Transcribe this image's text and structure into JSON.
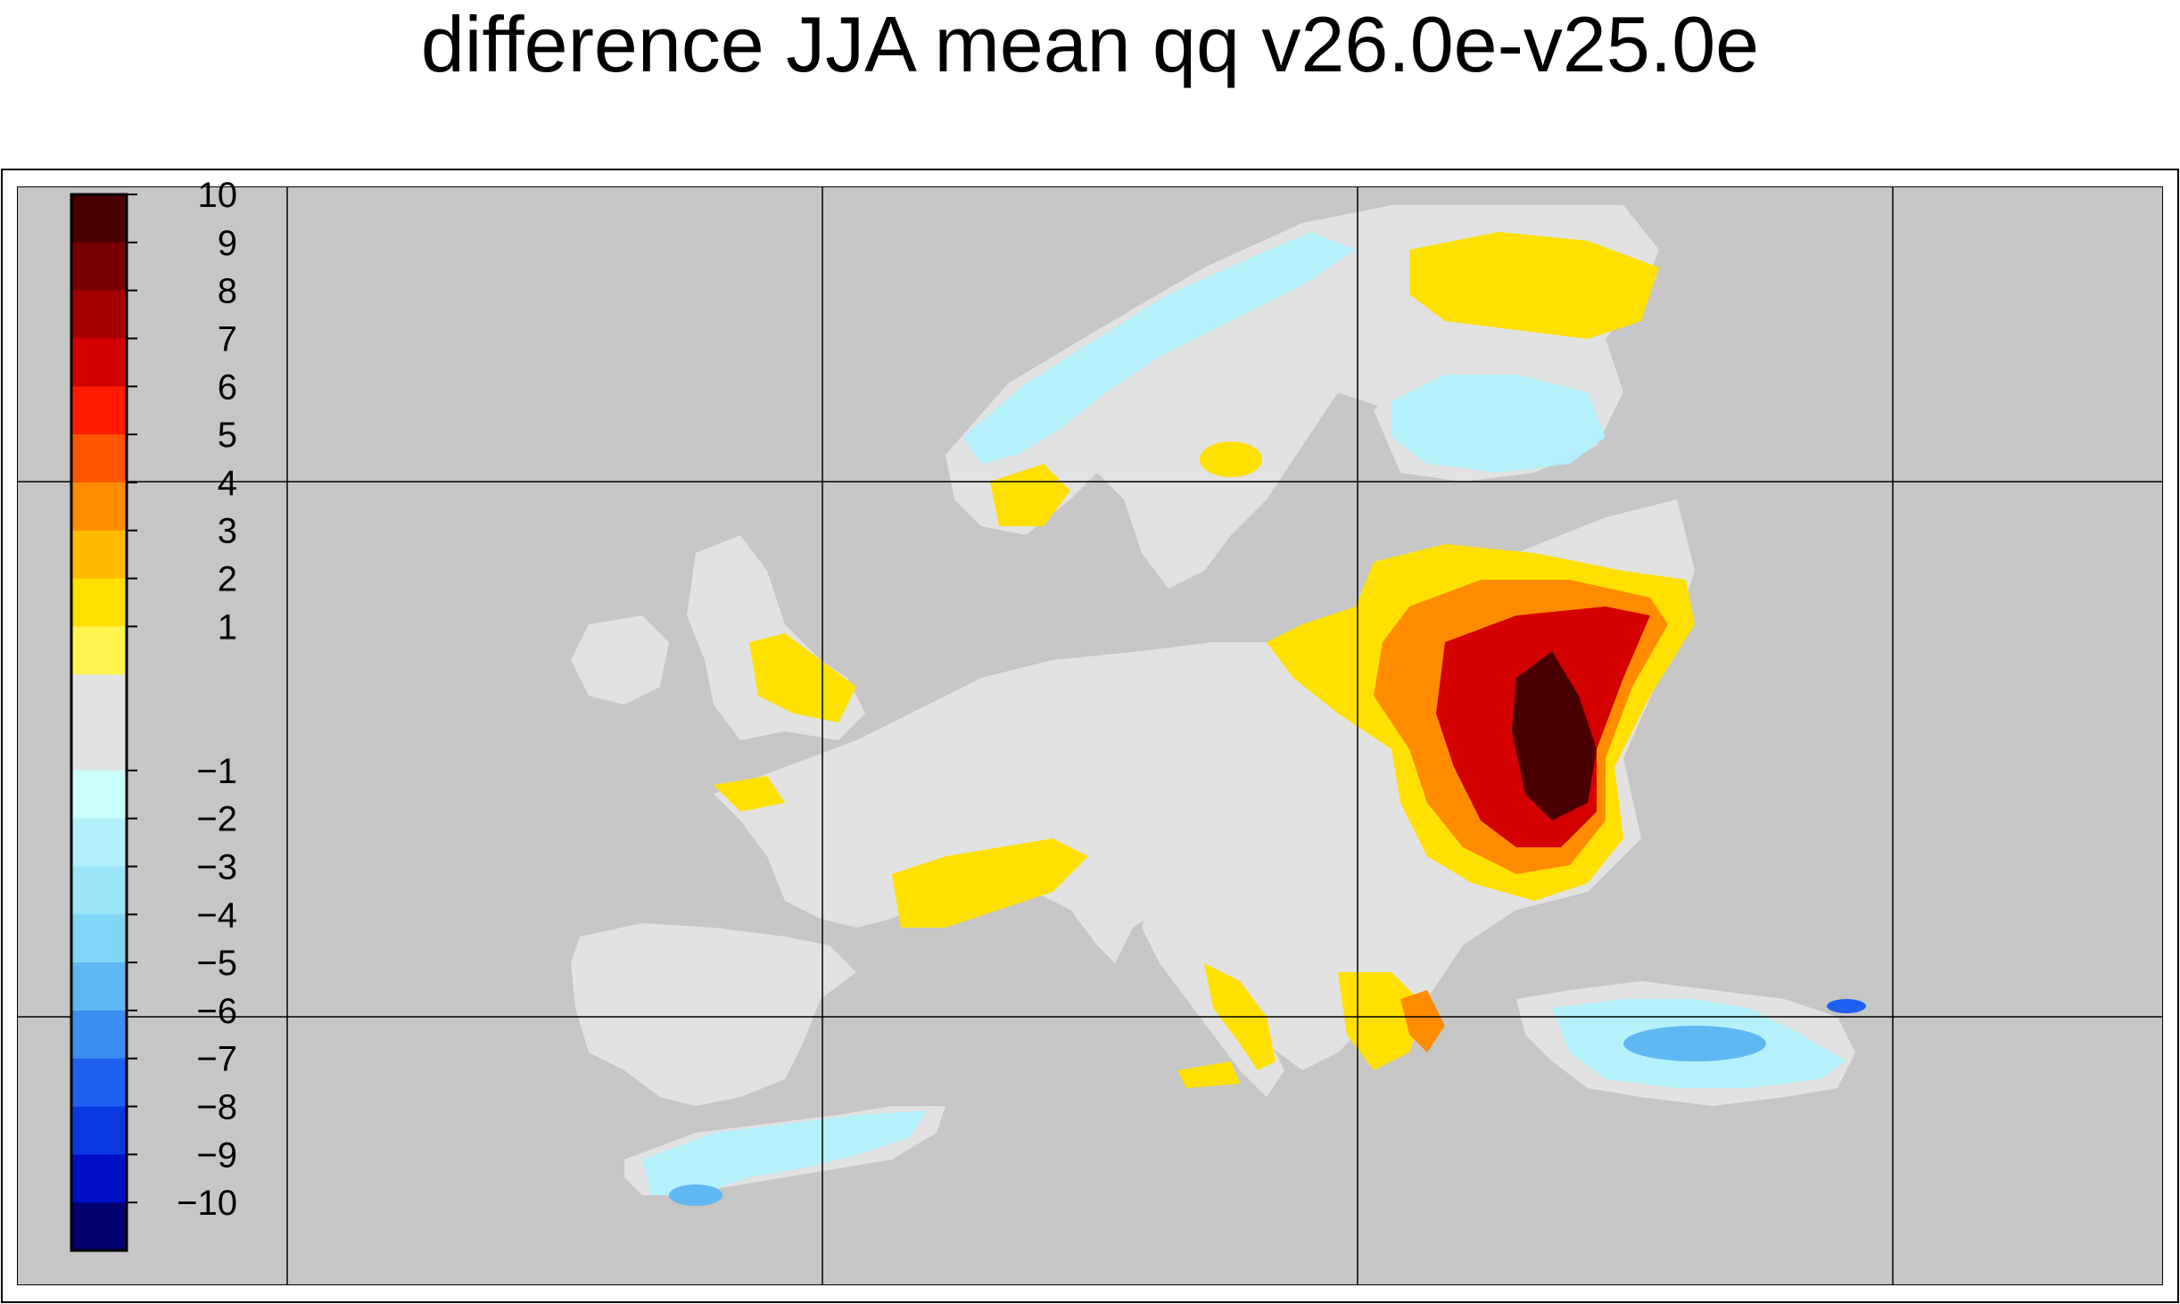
{
  "title": "difference JJA mean qq v26.0e-v25.0e",
  "colorbar": {
    "tick_labels": [
      "10",
      "9",
      "8",
      "7",
      "6",
      "5",
      "4",
      "3",
      "2",
      "1",
      "−1",
      "−2",
      "−3",
      "−4",
      "−5",
      "−6",
      "−7",
      "−8",
      "−9",
      "−10"
    ],
    "colors": [
      "#4a0000",
      "#7a0000",
      "#a80000",
      "#d40000",
      "#ff1a00",
      "#ff5500",
      "#ff8c00",
      "#ffbb00",
      "#ffe000",
      "#fff34d",
      "#e2e2e2",
      "#e2e2e2",
      "#ccffff",
      "#b2f1fb",
      "#99e5f8",
      "#80d4f5",
      "#5fb8f2",
      "#3a8ef0",
      "#2060f0",
      "#0a38e0",
      "#0010c8",
      "#000070"
    ]
  },
  "map": {
    "background_color": "#c6c6c6",
    "no_change_color": "#e2e2e2",
    "gridlines": true
  }
}
